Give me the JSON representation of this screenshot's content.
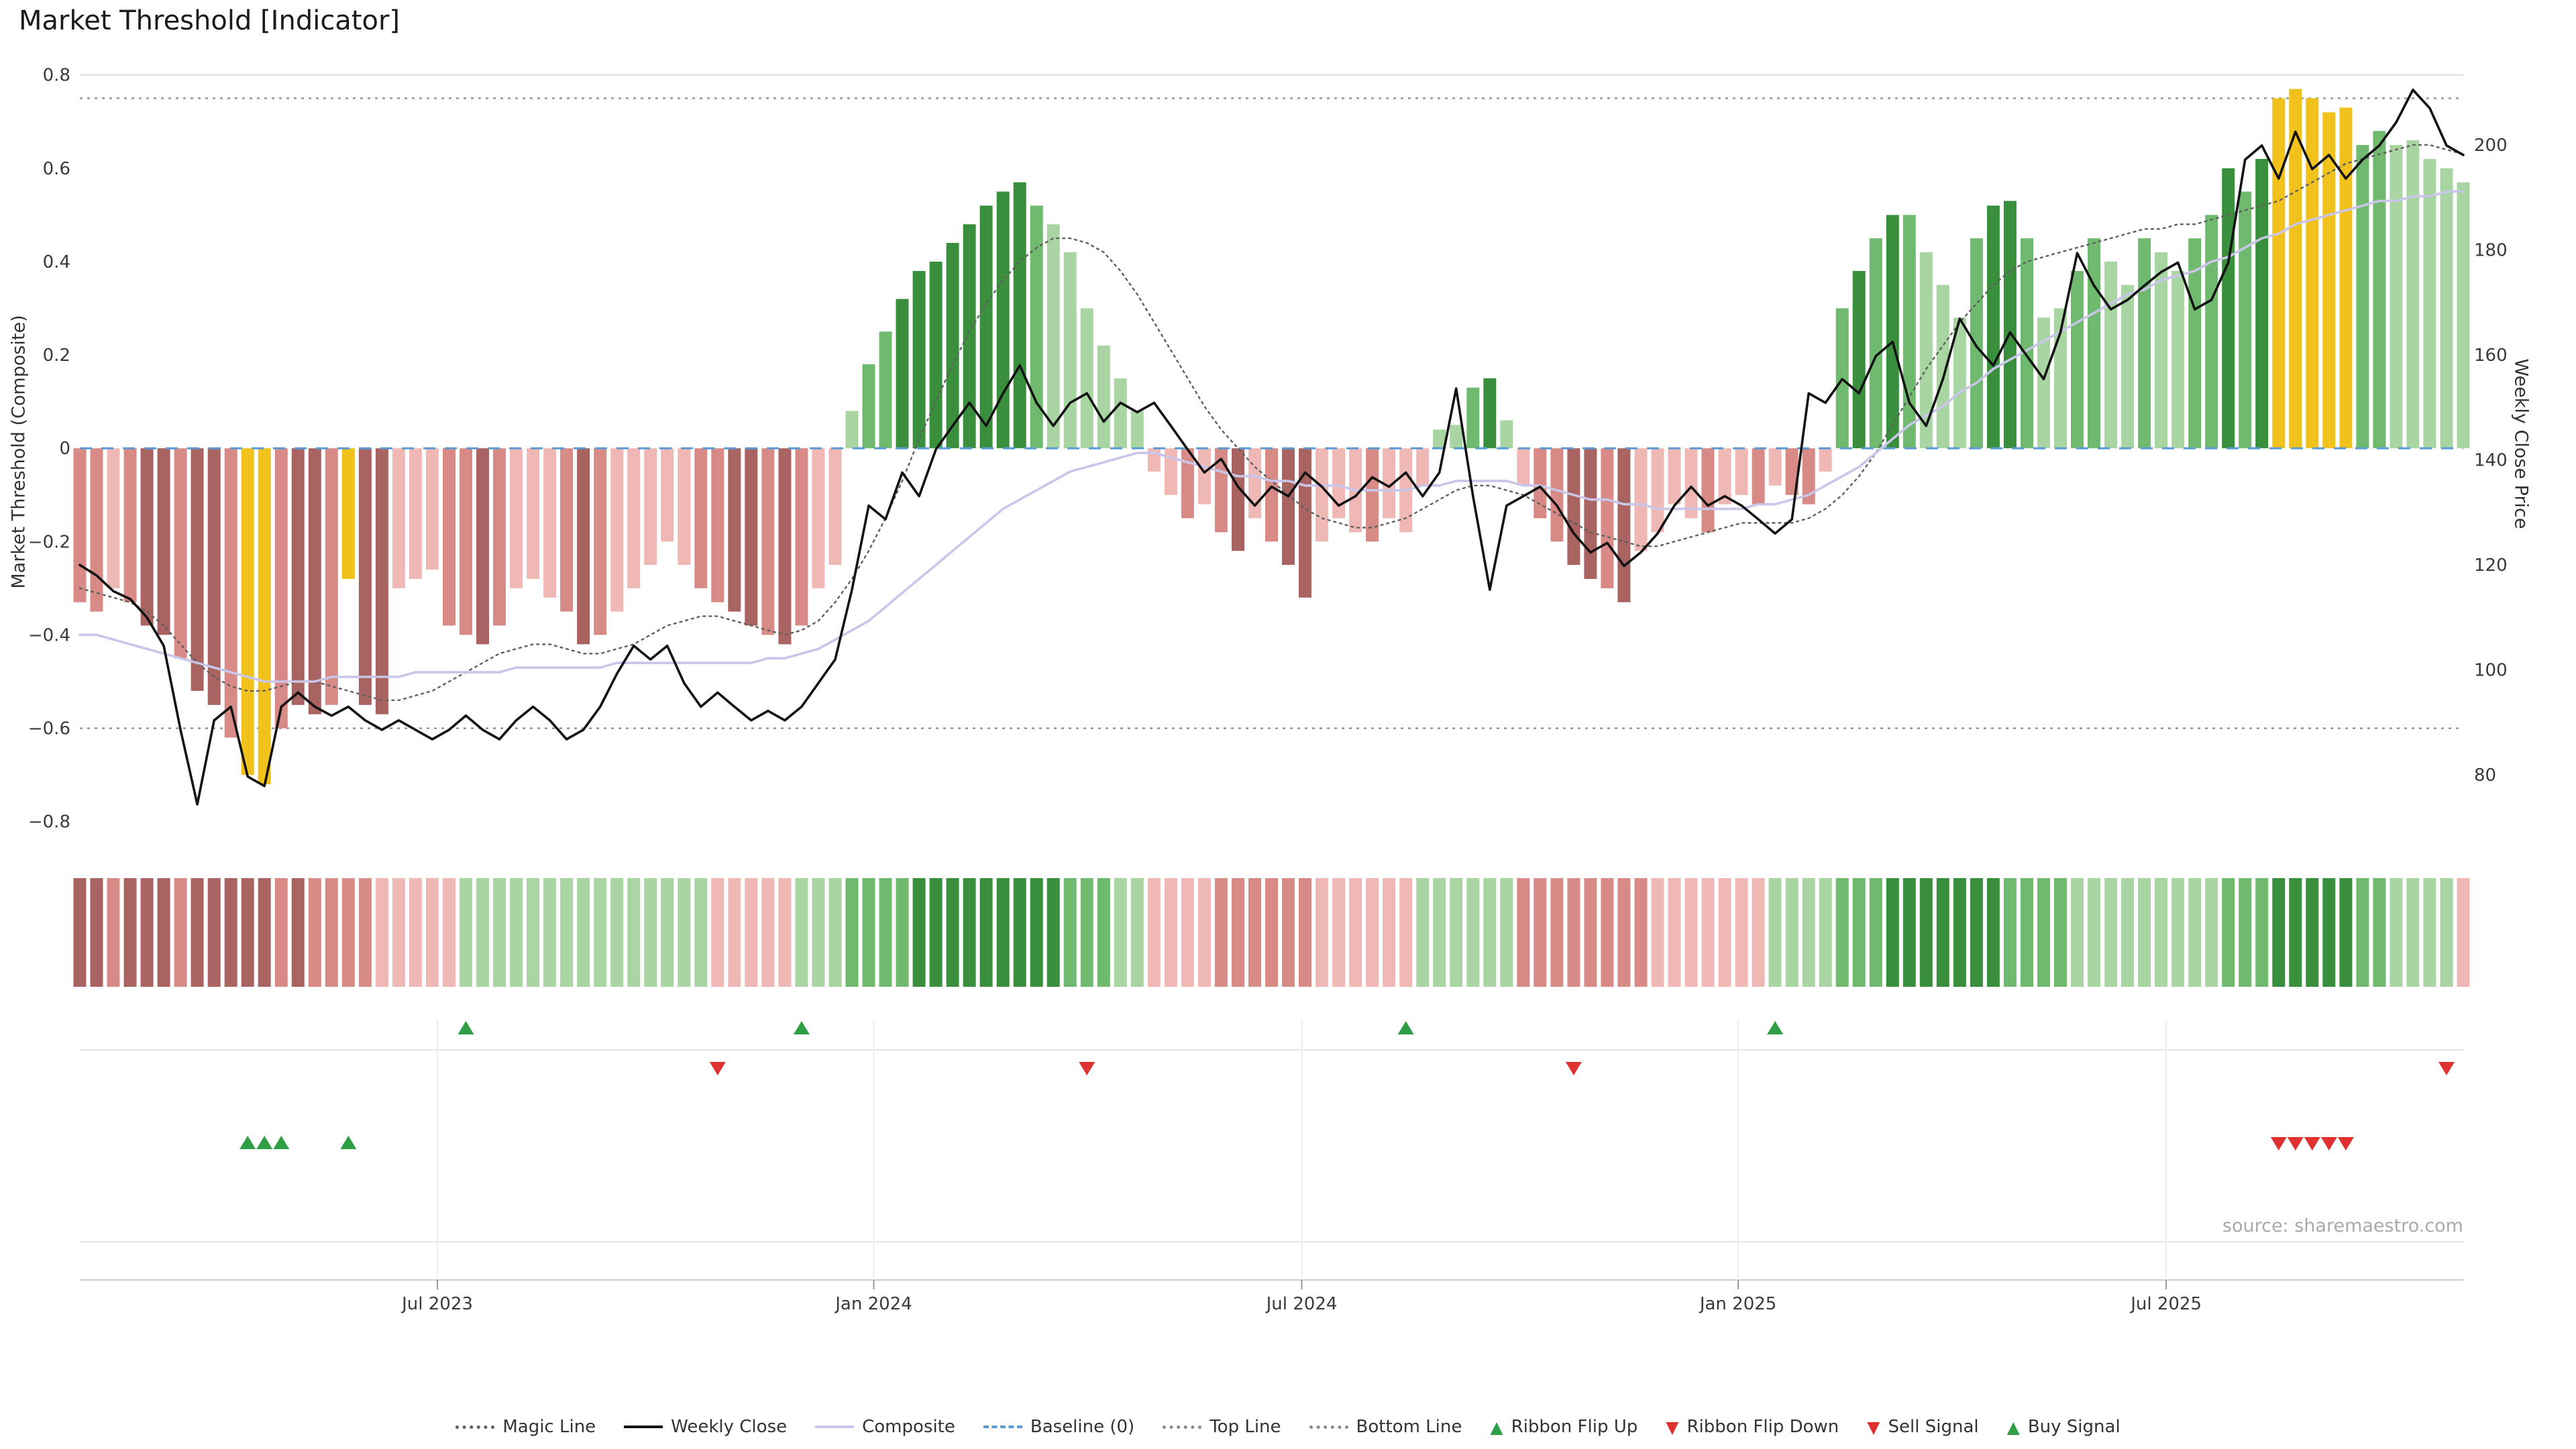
{
  "title": "Market Threshold [Indicator]",
  "source": "source: sharemaestro.com",
  "axes": {
    "left_label": "Market Threshold (Composite)",
    "right_label": "Weekly Close Price",
    "left_ticks": [
      {
        "v": 0.8,
        "label": "0.8"
      },
      {
        "v": 0.6,
        "label": "0.6"
      },
      {
        "v": 0.4,
        "label": "0.4"
      },
      {
        "v": 0.2,
        "label": "0.2"
      },
      {
        "v": 0.0,
        "label": "0"
      },
      {
        "v": -0.2,
        "label": "−0.2"
      },
      {
        "v": -0.4,
        "label": "−0.4"
      },
      {
        "v": -0.6,
        "label": "−0.6"
      },
      {
        "v": -0.8,
        "label": "−0.8"
      }
    ],
    "right_ticks": [
      {
        "price": 200,
        "label": "200"
      },
      {
        "price": 180,
        "label": "180"
      },
      {
        "price": 160,
        "label": "160"
      },
      {
        "price": 140,
        "label": "140"
      },
      {
        "price": 120,
        "label": "120"
      },
      {
        "price": 100,
        "label": "100"
      },
      {
        "price": 80,
        "label": "80"
      }
    ],
    "x_ticks": [
      {
        "week": 21.3,
        "label": "Jul 2023"
      },
      {
        "week": 47.3,
        "label": "Jan 2024"
      },
      {
        "week": 72.8,
        "label": "Jul 2024"
      },
      {
        "week": 98.8,
        "label": "Jan 2025"
      },
      {
        "week": 124.3,
        "label": "Jul 2025"
      }
    ]
  },
  "palette": {
    "r1": "#f0b8b4",
    "r2": "#d88a86",
    "r3": "#a96360",
    "g1": "#a8d5a2",
    "g2": "#6fba6e",
    "g3": "#3a8f3d",
    "gold": "#f2c21c",
    "weekly_close": "#131313",
    "composite": "#c9c6ea",
    "magic": "#5f5f5f",
    "baseline": "#5b9bd5",
    "ref_line": "#8a8a8a",
    "grid": "#e3e3e3",
    "signal_up": "#2f9e44",
    "signal_down": "#e03131"
  },
  "chart_data": {
    "type": "bar+line",
    "weeks": 143,
    "ylim_left": [
      -0.86,
      0.81
    ],
    "ylim_right_prices": [
      72,
      214
    ],
    "reference_lines": {
      "baseline": 0,
      "top_line": 0.75,
      "bottom_line": -0.6
    },
    "bars": {
      "name": "Market Threshold histogram",
      "values": [
        -0.33,
        -0.35,
        -0.3,
        -0.33,
        -0.38,
        -0.4,
        -0.45,
        -0.52,
        -0.55,
        -0.62,
        -0.7,
        -0.72,
        -0.6,
        -0.55,
        -0.57,
        -0.55,
        -0.28,
        -0.55,
        -0.57,
        -0.3,
        -0.28,
        -0.26,
        -0.38,
        -0.4,
        -0.42,
        -0.38,
        -0.3,
        -0.28,
        -0.32,
        -0.35,
        -0.42,
        -0.4,
        -0.35,
        -0.3,
        -0.25,
        -0.2,
        -0.25,
        -0.3,
        -0.33,
        -0.35,
        -0.38,
        -0.4,
        -0.42,
        -0.38,
        -0.3,
        -0.25,
        0.08,
        0.18,
        0.25,
        0.32,
        0.38,
        0.4,
        0.44,
        0.48,
        0.52,
        0.55,
        0.57,
        0.52,
        0.48,
        0.42,
        0.3,
        0.22,
        0.15,
        0.08,
        -0.05,
        -0.1,
        -0.15,
        -0.12,
        -0.18,
        -0.22,
        -0.15,
        -0.2,
        -0.25,
        -0.32,
        -0.2,
        -0.15,
        -0.18,
        -0.2,
        -0.15,
        -0.18,
        -0.08,
        0.04,
        0.05,
        0.13,
        0.15,
        0.06,
        -0.08,
        -0.15,
        -0.2,
        -0.25,
        -0.28,
        -0.3,
        -0.33,
        -0.22,
        -0.18,
        -0.12,
        -0.15,
        -0.18,
        -0.12,
        -0.1,
        -0.12,
        -0.08,
        -0.1,
        -0.12,
        -0.05,
        0.3,
        0.38,
        0.45,
        0.5,
        0.5,
        0.42,
        0.35,
        0.28,
        0.45,
        0.52,
        0.53,
        0.45,
        0.28,
        0.3,
        0.38,
        0.45,
        0.4,
        0.35,
        0.45,
        0.42,
        0.38,
        0.45,
        0.5,
        0.6,
        0.55,
        0.62,
        0.75,
        0.77,
        0.75,
        0.72,
        0.73,
        0.65,
        0.68,
        0.65,
        0.66,
        0.62,
        0.6,
        0.57
      ],
      "shades": [
        "r2",
        "r2",
        "r1",
        "r2",
        "r3",
        "r3",
        "r2",
        "r3",
        "r3",
        "r2",
        "gold",
        "gold",
        "r2",
        "r3",
        "r3",
        "r2",
        "gold",
        "r3",
        "r3",
        "r1",
        "r1",
        "r1",
        "r2",
        "r2",
        "r3",
        "r2",
        "r1",
        "r1",
        "r1",
        "r2",
        "r3",
        "r2",
        "r1",
        "r1",
        "r1",
        "r1",
        "r1",
        "r2",
        "r2",
        "r3",
        "r3",
        "r2",
        "r3",
        "r2",
        "r1",
        "r1",
        "g1",
        "g2",
        "g2",
        "g3",
        "g3",
        "g3",
        "g3",
        "g3",
        "g3",
        "g3",
        "g3",
        "g2",
        "g1",
        "g1",
        "g1",
        "g1",
        "g1",
        "g1",
        "r1",
        "r1",
        "r2",
        "r1",
        "r2",
        "r3",
        "r1",
        "r2",
        "r3",
        "r3",
        "r1",
        "r1",
        "r1",
        "r2",
        "r1",
        "r1",
        "r1",
        "g1",
        "g1",
        "g2",
        "g3",
        "g1",
        "r1",
        "r2",
        "r2",
        "r3",
        "r3",
        "r2",
        "r3",
        "r1",
        "r1",
        "r1",
        "r1",
        "r2",
        "r1",
        "r1",
        "r2",
        "r1",
        "r2",
        "r2",
        "r1",
        "g2",
        "g3",
        "g2",
        "g3",
        "g2",
        "g1",
        "g1",
        "g1",
        "g2",
        "g3",
        "g3",
        "g2",
        "g1",
        "g1",
        "g2",
        "g2",
        "g1",
        "g1",
        "g2",
        "g1",
        "g1",
        "g2",
        "g2",
        "g3",
        "g2",
        "g3",
        "gold",
        "gold",
        "gold",
        "gold",
        "gold",
        "g2",
        "g2",
        "g1",
        "g1",
        "g1",
        "g1",
        "g1"
      ]
    },
    "series": [
      {
        "name": "Weekly Close",
        "axis": "price",
        "values": [
          120,
          118,
          115,
          113.5,
          110,
          104.6,
          88.6,
          74.4,
          90.4,
          93,
          79.7,
          77.9,
          93,
          95.7,
          93,
          91.3,
          93,
          90.4,
          88.6,
          90.4,
          88.6,
          86.8,
          88.6,
          91.3,
          88.6,
          86.8,
          90.4,
          93,
          90.4,
          86.8,
          88.6,
          93,
          99.3,
          104.6,
          102,
          104.6,
          97.5,
          93,
          95.7,
          93,
          90.4,
          92.2,
          90.4,
          93,
          97.5,
          102,
          115.3,
          131.3,
          128.7,
          137.6,
          133.1,
          142,
          146.5,
          150.9,
          146.5,
          152.7,
          158,
          150.9,
          146.5,
          150.9,
          152.7,
          147.3,
          150.9,
          149.1,
          150.9,
          146.5,
          142,
          137.6,
          140.2,
          134.9,
          131.3,
          134.9,
          133.1,
          137.6,
          134.9,
          131.3,
          133.1,
          136.7,
          134.9,
          137.6,
          133.1,
          137.6,
          153.6,
          133.1,
          115.3,
          131.3,
          133.1,
          134.9,
          131.3,
          126,
          122.4,
          124.2,
          119.8,
          122.4,
          126,
          131.3,
          134.9,
          131.3,
          133.1,
          131.3,
          128.7,
          126,
          128.7,
          152.7,
          150.9,
          155.4,
          152.7,
          159.8,
          162.5,
          150.9,
          146.5,
          155.4,
          166.9,
          161.6,
          158,
          164.3,
          159.8,
          155.4,
          164.3,
          179.4,
          173.2,
          168.7,
          170.5,
          173.2,
          175.8,
          177.6,
          168.7,
          170.5,
          177.6,
          197.2,
          199.9,
          193.6,
          202.5,
          195.4,
          198.1,
          193.6,
          197.2,
          199.9,
          204.3,
          210.5,
          207,
          199.9,
          198.1
        ]
      },
      {
        "name": "Composite",
        "axis": "left",
        "values": [
          -0.4,
          -0.4,
          -0.41,
          -0.42,
          -0.43,
          -0.44,
          -0.45,
          -0.46,
          -0.47,
          -0.48,
          -0.49,
          -0.5,
          -0.5,
          -0.5,
          -0.5,
          -0.49,
          -0.49,
          -0.49,
          -0.49,
          -0.49,
          -0.48,
          -0.48,
          -0.48,
          -0.48,
          -0.48,
          -0.48,
          -0.47,
          -0.47,
          -0.47,
          -0.47,
          -0.47,
          -0.47,
          -0.46,
          -0.46,
          -0.46,
          -0.46,
          -0.46,
          -0.46,
          -0.46,
          -0.46,
          -0.46,
          -0.45,
          -0.45,
          -0.44,
          -0.43,
          -0.41,
          -0.39,
          -0.37,
          -0.34,
          -0.31,
          -0.28,
          -0.25,
          -0.22,
          -0.19,
          -0.16,
          -0.13,
          -0.11,
          -0.09,
          -0.07,
          -0.05,
          -0.04,
          -0.03,
          -0.02,
          -0.01,
          -0.01,
          -0.02,
          -0.03,
          -0.04,
          -0.05,
          -0.06,
          -0.06,
          -0.07,
          -0.07,
          -0.08,
          -0.08,
          -0.08,
          -0.09,
          -0.09,
          -0.09,
          -0.09,
          -0.08,
          -0.08,
          -0.07,
          -0.07,
          -0.07,
          -0.07,
          -0.08,
          -0.08,
          -0.09,
          -0.1,
          -0.11,
          -0.11,
          -0.12,
          -0.12,
          -0.13,
          -0.13,
          -0.13,
          -0.13,
          -0.13,
          -0.13,
          -0.12,
          -0.12,
          -0.11,
          -0.1,
          -0.08,
          -0.06,
          -0.04,
          -0.01,
          0.02,
          0.05,
          0.07,
          0.09,
          0.12,
          0.14,
          0.17,
          0.19,
          0.21,
          0.23,
          0.25,
          0.27,
          0.29,
          0.31,
          0.33,
          0.34,
          0.36,
          0.37,
          0.38,
          0.4,
          0.41,
          0.43,
          0.45,
          0.46,
          0.48,
          0.49,
          0.5,
          0.51,
          0.52,
          0.53,
          0.53,
          0.54,
          0.54,
          0.55,
          0.55
        ]
      },
      {
        "name": "Magic Line",
        "axis": "left",
        "values": [
          -0.3,
          -0.31,
          -0.32,
          -0.33,
          -0.35,
          -0.38,
          -0.42,
          -0.46,
          -0.49,
          -0.51,
          -0.52,
          -0.52,
          -0.51,
          -0.5,
          -0.5,
          -0.51,
          -0.52,
          -0.53,
          -0.54,
          -0.54,
          -0.53,
          -0.52,
          -0.5,
          -0.48,
          -0.46,
          -0.44,
          -0.43,
          -0.42,
          -0.42,
          -0.43,
          -0.44,
          -0.44,
          -0.43,
          -0.42,
          -0.4,
          -0.38,
          -0.37,
          -0.36,
          -0.36,
          -0.37,
          -0.38,
          -0.39,
          -0.4,
          -0.39,
          -0.37,
          -0.33,
          -0.28,
          -0.22,
          -0.15,
          -0.07,
          0.02,
          0.1,
          0.18,
          0.25,
          0.31,
          0.36,
          0.4,
          0.43,
          0.45,
          0.45,
          0.44,
          0.42,
          0.38,
          0.33,
          0.27,
          0.21,
          0.15,
          0.09,
          0.04,
          0.0,
          -0.04,
          -0.07,
          -0.1,
          -0.13,
          -0.15,
          -0.16,
          -0.17,
          -0.17,
          -0.16,
          -0.15,
          -0.13,
          -0.11,
          -0.09,
          -0.08,
          -0.08,
          -0.09,
          -0.1,
          -0.12,
          -0.14,
          -0.16,
          -0.18,
          -0.19,
          -0.2,
          -0.21,
          -0.21,
          -0.2,
          -0.19,
          -0.18,
          -0.17,
          -0.16,
          -0.16,
          -0.16,
          -0.16,
          -0.15,
          -0.13,
          -0.1,
          -0.06,
          -0.01,
          0.05,
          0.11,
          0.17,
          0.22,
          0.27,
          0.31,
          0.35,
          0.38,
          0.4,
          0.41,
          0.42,
          0.43,
          0.44,
          0.45,
          0.46,
          0.47,
          0.47,
          0.48,
          0.48,
          0.49,
          0.5,
          0.51,
          0.52,
          0.53,
          0.55,
          0.57,
          0.59,
          0.61,
          0.62,
          0.63,
          0.64,
          0.65,
          0.65,
          0.64,
          0.63
        ]
      }
    ],
    "ribbon": {
      "shades": [
        "r3",
        "r3",
        "r2",
        "r3",
        "r3",
        "r3",
        "r2",
        "r3",
        "r3",
        "r3",
        "r3",
        "r3",
        "r2",
        "r3",
        "r2",
        "r2",
        "r2",
        "r2",
        "r1",
        "r1",
        "r1",
        "r1",
        "r1",
        "g1",
        "g1",
        "g1",
        "g1",
        "g1",
        "g1",
        "g1",
        "g1",
        "g1",
        "g1",
        "g1",
        "g1",
        "g1",
        "g1",
        "g1",
        "r1",
        "r1",
        "r1",
        "r1",
        "r1",
        "g1",
        "g1",
        "g1",
        "g2",
        "g2",
        "g2",
        "g2",
        "g3",
        "g3",
        "g3",
        "g3",
        "g3",
        "g3",
        "g3",
        "g3",
        "g3",
        "g2",
        "g2",
        "g2",
        "g1",
        "g1",
        "r1",
        "r1",
        "r1",
        "r1",
        "r2",
        "r2",
        "r2",
        "r2",
        "r2",
        "r2",
        "r1",
        "r1",
        "r1",
        "r1",
        "r1",
        "r1",
        "g1",
        "g1",
        "g1",
        "g1",
        "g1",
        "g1",
        "r2",
        "r2",
        "r2",
        "r2",
        "r2",
        "r2",
        "r2",
        "r2",
        "r1",
        "r1",
        "r1",
        "r1",
        "r1",
        "r1",
        "r1",
        "g1",
        "g1",
        "g1",
        "g1",
        "g2",
        "g2",
        "g2",
        "g3",
        "g3",
        "g3",
        "g3",
        "g3",
        "g3",
        "g3",
        "g2",
        "g2",
        "g2",
        "g2",
        "g1",
        "g1",
        "g1",
        "g1",
        "g1",
        "g1",
        "g1",
        "g1",
        "g1",
        "g2",
        "g2",
        "g2",
        "g3",
        "g3",
        "g3",
        "g3",
        "g3",
        "g2",
        "g2",
        "g1",
        "g1",
        "g1",
        "g1",
        "r1"
      ]
    },
    "signals": {
      "ribbon_flip_up_weeks": [
        23,
        43,
        79,
        101
      ],
      "ribbon_flip_down_weeks": [
        38,
        60,
        89,
        141
      ],
      "buy_signal_weeks": [
        10,
        11,
        12,
        16
      ],
      "sell_signal_weeks": [
        131,
        132,
        133,
        134,
        135
      ]
    }
  },
  "legend": {
    "items": [
      {
        "id": "magic-line",
        "label": "Magic Line",
        "marker": "dotted",
        "color": "#5f5f5f"
      },
      {
        "id": "weekly-close",
        "label": "Weekly Close",
        "marker": "solid",
        "color": "#131313"
      },
      {
        "id": "composite",
        "label": "Composite",
        "marker": "solid",
        "color": "#c9c6ea"
      },
      {
        "id": "baseline",
        "label": "Baseline (0)",
        "marker": "dashed",
        "color": "#5b9bd5"
      },
      {
        "id": "top-line",
        "label": "Top Line",
        "marker": "dotted",
        "color": "#8a8a8a"
      },
      {
        "id": "bottom-line",
        "label": "Bottom Line",
        "marker": "dotted",
        "color": "#8a8a8a"
      },
      {
        "id": "ribbon-flip-up",
        "label": "Ribbon Flip Up",
        "marker": "triangle-up",
        "color": "#2f9e44"
      },
      {
        "id": "ribbon-flip-down",
        "label": "Ribbon Flip Down",
        "marker": "triangle-down",
        "color": "#e03131"
      },
      {
        "id": "sell-signal",
        "label": "Sell Signal",
        "marker": "triangle-down",
        "color": "#e03131"
      },
      {
        "id": "buy-signal",
        "label": "Buy Signal",
        "marker": "triangle-up",
        "color": "#2f9e44"
      }
    ]
  }
}
